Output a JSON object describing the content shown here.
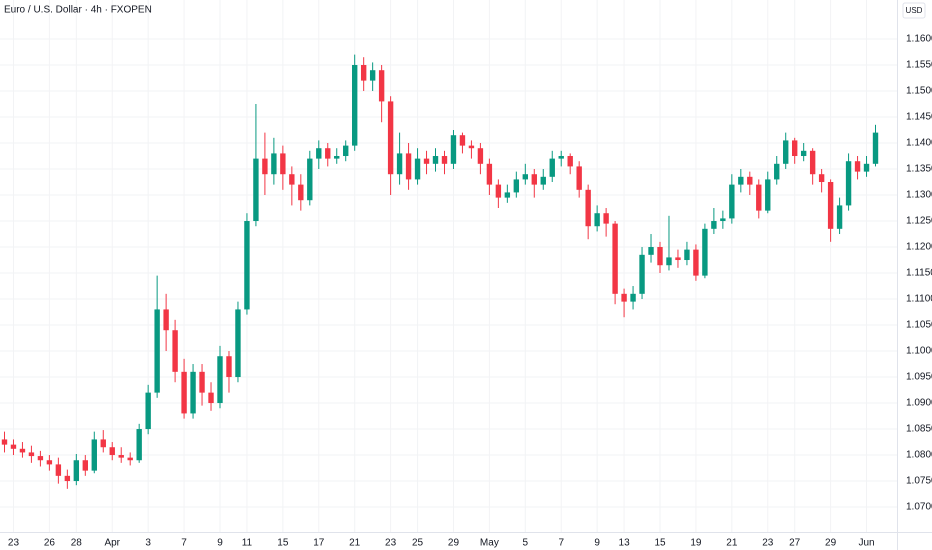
{
  "chart_data": {
    "type": "candlestick",
    "title": "Euro / U.S. Dollar · 4h · FXOPEN",
    "y_axis_label": "USD",
    "x": [
      null,
      "23",
      null,
      null,
      null,
      "26",
      null,
      null,
      "28",
      null,
      null,
      null,
      "Apr",
      null,
      null,
      null,
      "3",
      null,
      null,
      null,
      "7",
      null,
      null,
      null,
      "9",
      null,
      null,
      "11",
      null,
      null,
      null,
      "15",
      null,
      null,
      null,
      "17",
      null,
      null,
      null,
      "21",
      null,
      null,
      null,
      "23",
      null,
      null,
      "25",
      null,
      null,
      null,
      "29",
      null,
      null,
      null,
      "May",
      null,
      null,
      null,
      "5",
      null,
      null,
      null,
      "7",
      null,
      null,
      null,
      "9",
      null,
      null,
      "13",
      null,
      null,
      null,
      "15",
      null,
      null,
      null,
      "19",
      null,
      null,
      null,
      "21",
      null,
      null,
      null,
      "23",
      null,
      null,
      "27",
      null,
      null,
      null,
      "29",
      null,
      null,
      null,
      "Jun",
      null
    ],
    "open": [
      1.083,
      1.082,
      1.0812,
      1.0805,
      1.0798,
      1.079,
      1.0782,
      1.076,
      1.075,
      1.079,
      1.077,
      1.083,
      1.0815,
      1.08,
      1.0795,
      1.079,
      1.085,
      1.092,
      1.108,
      1.104,
      1.096,
      1.088,
      1.096,
      1.092,
      1.09,
      1.099,
      1.095,
      1.108,
      1.125,
      1.137,
      1.134,
      1.138,
      1.134,
      1.132,
      1.129,
      1.137,
      1.139,
      1.137,
      1.1375,
      1.1395,
      1.155,
      1.152,
      1.154,
      1.148,
      1.134,
      1.138,
      1.133,
      1.137,
      1.136,
      1.1375,
      1.136,
      1.1415,
      1.1395,
      1.139,
      1.136,
      1.132,
      1.1295,
      1.1305,
      1.133,
      1.134,
      1.132,
      1.1335,
      1.137,
      1.1375,
      1.1355,
      1.131,
      1.124,
      1.1265,
      1.1245,
      1.111,
      1.1095,
      1.111,
      1.1185,
      1.12,
      1.1165,
      1.118,
      1.1175,
      1.1195,
      1.1145,
      1.1235,
      1.125,
      1.1255,
      1.132,
      1.1335,
      1.132,
      1.127,
      1.133,
      1.136,
      1.1405,
      1.1375,
      1.1385,
      1.134,
      1.1325,
      1.1235,
      1.128,
      1.1365,
      1.1345,
      1.136
    ],
    "high": [
      1.0845,
      1.083,
      1.0825,
      1.0818,
      1.0808,
      1.08,
      1.0795,
      1.0772,
      1.0802,
      1.08,
      1.0845,
      1.0848,
      1.0825,
      1.0815,
      1.0805,
      1.086,
      1.0935,
      1.1145,
      1.111,
      1.106,
      1.0985,
      1.0975,
      1.0975,
      1.094,
      1.101,
      1.1,
      1.1095,
      1.1265,
      1.1475,
      1.142,
      1.141,
      1.1395,
      1.1355,
      1.134,
      1.1385,
      1.1405,
      1.14,
      1.139,
      1.1405,
      1.157,
      1.1565,
      1.1555,
      1.155,
      1.149,
      1.142,
      1.14,
      1.139,
      1.1385,
      1.139,
      1.1385,
      1.1425,
      1.142,
      1.1405,
      1.14,
      1.137,
      1.133,
      1.132,
      1.1345,
      1.136,
      1.135,
      1.135,
      1.1385,
      1.1385,
      1.138,
      1.1365,
      1.132,
      1.128,
      1.1275,
      1.125,
      1.112,
      1.1125,
      1.12,
      1.1225,
      1.121,
      1.126,
      1.1195,
      1.121,
      1.1205,
      1.1245,
      1.1275,
      1.127,
      1.134,
      1.135,
      1.1345,
      1.133,
      1.1345,
      1.1375,
      1.142,
      1.141,
      1.14,
      1.139,
      1.135,
      1.133,
      1.1295,
      1.138,
      1.1375,
      1.1375,
      1.1435
    ],
    "low": [
      1.0805,
      1.08,
      1.0795,
      1.0785,
      1.0778,
      1.077,
      1.0745,
      1.0735,
      1.0742,
      1.076,
      1.0765,
      1.0805,
      1.079,
      1.0785,
      1.078,
      1.0785,
      1.084,
      1.091,
      1.1,
      1.094,
      1.087,
      1.087,
      1.0895,
      1.0885,
      1.089,
      1.092,
      1.094,
      1.107,
      1.124,
      1.13,
      1.132,
      1.131,
      1.128,
      1.127,
      1.128,
      1.135,
      1.1355,
      1.136,
      1.1365,
      1.1385,
      1.15,
      1.15,
      1.144,
      1.13,
      1.132,
      1.131,
      1.132,
      1.134,
      1.1345,
      1.134,
      1.135,
      1.138,
      1.137,
      1.134,
      1.13,
      1.1275,
      1.1285,
      1.1295,
      1.132,
      1.1295,
      1.131,
      1.1325,
      1.1355,
      1.134,
      1.1295,
      1.1215,
      1.123,
      1.122,
      1.109,
      1.1065,
      1.108,
      1.11,
      1.117,
      1.115,
      1.1155,
      1.116,
      1.1165,
      1.1135,
      1.114,
      1.1225,
      1.1235,
      1.1245,
      1.1305,
      1.13,
      1.1255,
      1.1265,
      1.132,
      1.135,
      1.136,
      1.1365,
      1.132,
      1.1305,
      1.121,
      1.1225,
      1.127,
      1.133,
      1.1335,
      1.1355
    ],
    "close": [
      1.082,
      1.0812,
      1.0805,
      1.0798,
      1.079,
      1.0782,
      1.076,
      1.075,
      1.079,
      1.077,
      1.083,
      1.0815,
      1.08,
      1.0795,
      1.079,
      1.085,
      1.092,
      1.108,
      1.104,
      1.096,
      1.088,
      1.096,
      1.092,
      1.09,
      1.099,
      1.095,
      1.108,
      1.125,
      1.137,
      1.134,
      1.138,
      1.134,
      1.132,
      1.129,
      1.137,
      1.139,
      1.137,
      1.1375,
      1.1395,
      1.155,
      1.152,
      1.154,
      1.148,
      1.134,
      1.138,
      1.133,
      1.137,
      1.136,
      1.1375,
      1.136,
      1.1415,
      1.1395,
      1.139,
      1.136,
      1.132,
      1.1295,
      1.1305,
      1.133,
      1.134,
      1.132,
      1.1335,
      1.137,
      1.1375,
      1.1355,
      1.131,
      1.124,
      1.1265,
      1.1245,
      1.111,
      1.1095,
      1.111,
      1.1185,
      1.12,
      1.1165,
      1.118,
      1.1175,
      1.1195,
      1.1145,
      1.1235,
      1.125,
      1.1255,
      1.132,
      1.1335,
      1.132,
      1.127,
      1.133,
      1.136,
      1.1405,
      1.1375,
      1.1385,
      1.134,
      1.1325,
      1.1235,
      1.128,
      1.1365,
      1.1345,
      1.136,
      1.142
    ],
    "up_color": "#089981",
    "down_color": "#f23645",
    "ylim": [
      1.0652,
      1.1675
    ],
    "yticks": [
      {
        "value": 1.07,
        "label": "1.07000"
      },
      {
        "value": 1.075,
        "label": "1.07500"
      },
      {
        "value": 1.08,
        "label": "1.08000"
      },
      {
        "value": 1.085,
        "label": "1.08500"
      },
      {
        "value": 1.09,
        "label": "1.09000"
      },
      {
        "value": 1.095,
        "label": "1.09500"
      },
      {
        "value": 1.1,
        "label": "1.10000"
      },
      {
        "value": 1.105,
        "label": "1.10500"
      },
      {
        "value": 1.11,
        "label": "1.11000"
      },
      {
        "value": 1.115,
        "label": "1.11500"
      },
      {
        "value": 1.12,
        "label": "1.12000"
      },
      {
        "value": 1.125,
        "label": "1.12500"
      },
      {
        "value": 1.13,
        "label": "1.13000"
      },
      {
        "value": 1.135,
        "label": "1.13500"
      },
      {
        "value": 1.14,
        "label": "1.14000"
      },
      {
        "value": 1.145,
        "label": "1.14500"
      },
      {
        "value": 1.15,
        "label": "1.15000"
      },
      {
        "value": 1.155,
        "label": "1.15500"
      },
      {
        "value": 1.16,
        "label": "1.16000"
      }
    ],
    "grid": true
  }
}
